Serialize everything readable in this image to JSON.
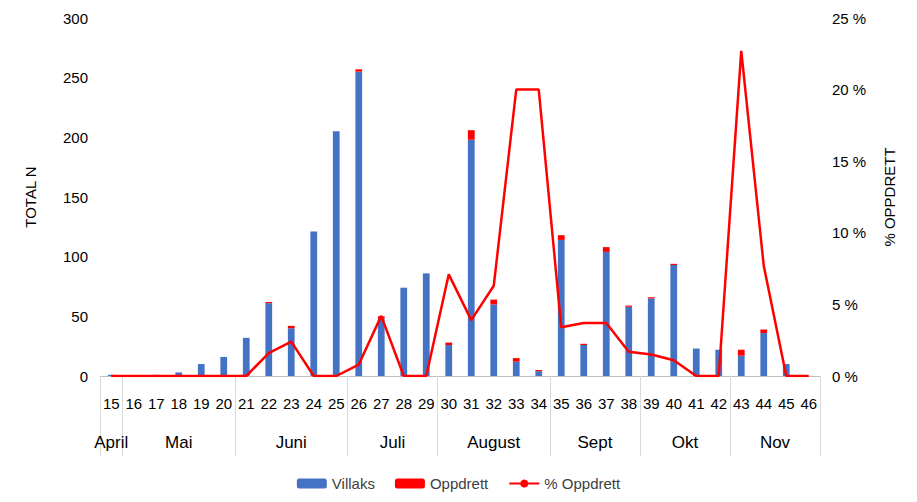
{
  "chart_data": {
    "type": "bar",
    "categories": [
      "15",
      "16",
      "17",
      "18",
      "19",
      "20",
      "21",
      "22",
      "23",
      "24",
      "25",
      "26",
      "27",
      "28",
      "29",
      "30",
      "31",
      "32",
      "33",
      "34",
      "35",
      "36",
      "37",
      "38",
      "39",
      "40",
      "41",
      "42",
      "43",
      "44",
      "45",
      "46"
    ],
    "x_groups": [
      {
        "label": "April",
        "from": "15",
        "to": "15"
      },
      {
        "label": "Mai",
        "from": "16",
        "to": "20"
      },
      {
        "label": "Juni",
        "from": "21",
        "to": "25"
      },
      {
        "label": "Juli",
        "from": "26",
        "to": "29"
      },
      {
        "label": "August",
        "from": "30",
        "to": "34"
      },
      {
        "label": "Sept",
        "from": "35",
        "to": "38"
      },
      {
        "label": "Okt",
        "from": "39",
        "to": "42"
      },
      {
        "label": "Nov",
        "from": "43",
        "to": "46"
      }
    ],
    "series": [
      {
        "name": "Villaks",
        "type": "bar",
        "color": "#4472c4",
        "values": [
          1,
          0,
          1,
          3,
          10,
          16,
          32,
          61,
          40,
          121,
          205,
          255,
          48,
          74,
          86,
          26,
          198,
          60,
          12,
          4,
          114,
          26,
          104,
          58,
          65,
          93,
          23,
          22,
          17,
          36,
          10,
          0
        ]
      },
      {
        "name": "Oppdrett",
        "type": "bar",
        "color": "#ff0000",
        "values": [
          0,
          0,
          0,
          0,
          0,
          0,
          0,
          1,
          2,
          0,
          0,
          2,
          2,
          0,
          0,
          2,
          8,
          4,
          3,
          1,
          4,
          1,
          4,
          1,
          1,
          1,
          0,
          0,
          5,
          3,
          0,
          0
        ]
      },
      {
        "name": "% Oppdrett",
        "type": "line",
        "axis": "y2",
        "color": "#ff0000",
        "line_style": "solid",
        "values": [
          0,
          0,
          0,
          0,
          0,
          0,
          0,
          1.6,
          2.4,
          0,
          0,
          0.8,
          4.2,
          0,
          0,
          7.1,
          3.9,
          6.3,
          20,
          20,
          3.4,
          3.7,
          3.7,
          1.7,
          1.5,
          1.1,
          0,
          0,
          22.7,
          7.7,
          0,
          0
        ]
      }
    ],
    "ylabel": "TOTAL N",
    "y2label": "% OPPDRETT",
    "ylim": [
      0,
      300
    ],
    "yticks": [
      0,
      50,
      100,
      150,
      200,
      250,
      300
    ],
    "y2lim": [
      0,
      25
    ],
    "y2ticks": [
      {
        "value": 0,
        "label": "0 %"
      },
      {
        "value": 5,
        "label": "5 %"
      },
      {
        "value": 10,
        "label": "10 %"
      },
      {
        "value": 15,
        "label": "15 %"
      },
      {
        "value": 20,
        "label": "20 %"
      },
      {
        "value": 25,
        "label": "25 %"
      }
    ],
    "stacked": true,
    "grid": false,
    "legend": "bottom"
  }
}
